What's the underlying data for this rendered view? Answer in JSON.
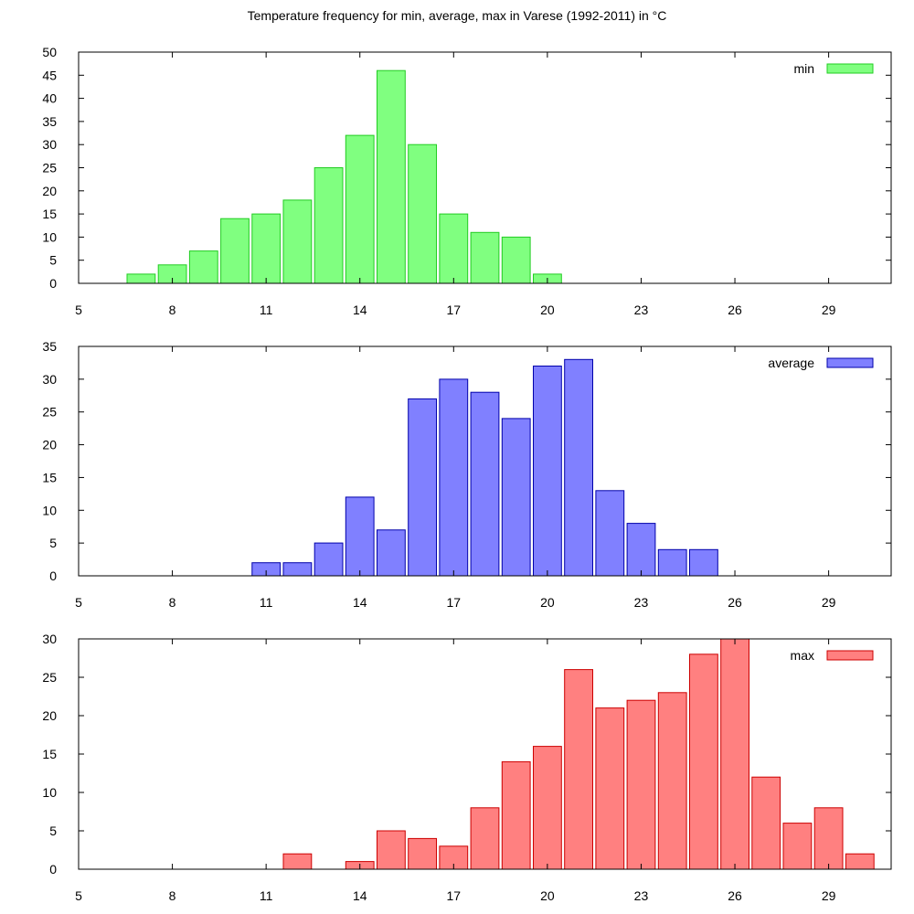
{
  "title": "Temperature frequency for min, average, max in Varese (1992-2011) in °C",
  "chart_data": [
    {
      "type": "bar",
      "series_name": "min",
      "color": "#80ff80",
      "border_color": "#22cc22",
      "bin_width": 1,
      "bar_fill_fraction": 0.9,
      "x_range": [
        5,
        31
      ],
      "x_ticks": [
        5,
        8,
        11,
        14,
        17,
        20,
        23,
        26,
        29
      ],
      "y_range": [
        0,
        50
      ],
      "y_ticks": [
        0,
        5,
        10,
        15,
        20,
        25,
        30,
        35,
        40,
        45,
        50
      ],
      "legend_position": "top-right",
      "data": [
        {
          "x": 7,
          "y": 2
        },
        {
          "x": 8,
          "y": 4
        },
        {
          "x": 9,
          "y": 7
        },
        {
          "x": 10,
          "y": 14
        },
        {
          "x": 11,
          "y": 15
        },
        {
          "x": 12,
          "y": 18
        },
        {
          "x": 13,
          "y": 25
        },
        {
          "x": 14,
          "y": 32
        },
        {
          "x": 15,
          "y": 46
        },
        {
          "x": 16,
          "y": 30
        },
        {
          "x": 17,
          "y": 15
        },
        {
          "x": 18,
          "y": 11
        },
        {
          "x": 19,
          "y": 10
        },
        {
          "x": 20,
          "y": 2
        }
      ]
    },
    {
      "type": "bar",
      "series_name": "average",
      "color": "#8080ff",
      "border_color": "#0000aa",
      "bin_width": 1,
      "bar_fill_fraction": 0.9,
      "x_range": [
        5,
        31
      ],
      "x_ticks": [
        5,
        8,
        11,
        14,
        17,
        20,
        23,
        26,
        29
      ],
      "y_range": [
        0,
        35
      ],
      "y_ticks": [
        0,
        5,
        10,
        15,
        20,
        25,
        30,
        35
      ],
      "legend_position": "top-right",
      "data": [
        {
          "x": 11,
          "y": 2
        },
        {
          "x": 12,
          "y": 2
        },
        {
          "x": 13,
          "y": 5
        },
        {
          "x": 14,
          "y": 12
        },
        {
          "x": 15,
          "y": 7
        },
        {
          "x": 16,
          "y": 27
        },
        {
          "x": 17,
          "y": 30
        },
        {
          "x": 18,
          "y": 28
        },
        {
          "x": 19,
          "y": 24
        },
        {
          "x": 20,
          "y": 32
        },
        {
          "x": 21,
          "y": 33
        },
        {
          "x": 22,
          "y": 13
        },
        {
          "x": 23,
          "y": 8
        },
        {
          "x": 24,
          "y": 4
        },
        {
          "x": 25,
          "y": 4
        }
      ]
    },
    {
      "type": "bar",
      "series_name": "max",
      "color": "#ff8080",
      "border_color": "#cc0000",
      "bin_width": 1,
      "bar_fill_fraction": 0.9,
      "x_range": [
        5,
        31
      ],
      "x_ticks": [
        5,
        8,
        11,
        14,
        17,
        20,
        23,
        26,
        29
      ],
      "y_range": [
        0,
        30
      ],
      "y_ticks": [
        0,
        5,
        10,
        15,
        20,
        25,
        30
      ],
      "legend_position": "top-right",
      "data": [
        {
          "x": 12,
          "y": 2
        },
        {
          "x": 14,
          "y": 1
        },
        {
          "x": 15,
          "y": 5
        },
        {
          "x": 16,
          "y": 4
        },
        {
          "x": 17,
          "y": 3
        },
        {
          "x": 18,
          "y": 8
        },
        {
          "x": 19,
          "y": 14
        },
        {
          "x": 20,
          "y": 16
        },
        {
          "x": 21,
          "y": 26
        },
        {
          "x": 22,
          "y": 21
        },
        {
          "x": 23,
          "y": 22
        },
        {
          "x": 24,
          "y": 23
        },
        {
          "x": 25,
          "y": 28
        },
        {
          "x": 26,
          "y": 30
        },
        {
          "x": 27,
          "y": 12
        },
        {
          "x": 28,
          "y": 6
        },
        {
          "x": 29,
          "y": 8
        },
        {
          "x": 30,
          "y": 2
        }
      ]
    }
  ]
}
